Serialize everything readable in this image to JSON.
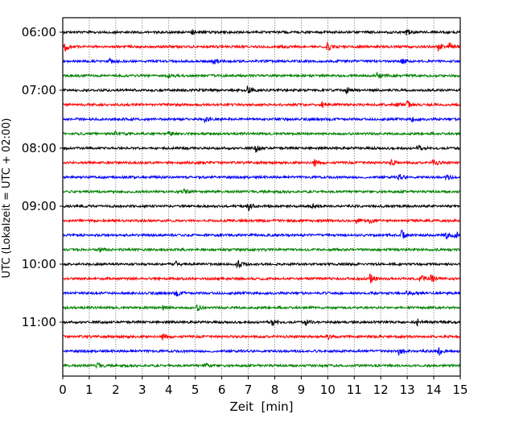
{
  "chart_data": {
    "type": "line",
    "title": "",
    "xlabel": "Zeit  [min]",
    "ylabel": "UTC (Lokalzeit = UTC + 02:00)",
    "xlim": [
      0,
      15
    ],
    "x_ticks": [
      "0",
      "1",
      "2",
      "3",
      "4",
      "5",
      "6",
      "7",
      "8",
      "9",
      "10",
      "11",
      "12",
      "13",
      "14",
      "15"
    ],
    "y_tick_labels": [
      "06:00",
      "07:00",
      "08:00",
      "09:00",
      "10:00",
      "11:00"
    ],
    "grid": "vertical dotted at each minute",
    "trace_interval_min": 15,
    "colors": [
      "#000000",
      "#ff0000",
      "#0000ff",
      "#008000"
    ],
    "traces": [
      {
        "start": "06:00",
        "events": [
          [
            4.9,
            1.2
          ],
          [
            13.0,
            1.0
          ]
        ]
      },
      {
        "start": "06:15",
        "events": [
          [
            0.1,
            2.0
          ],
          [
            8.2,
            1.0
          ],
          [
            10.0,
            2.2
          ],
          [
            14.2,
            1.8
          ],
          [
            14.6,
            1.6
          ]
        ]
      },
      {
        "start": "06:30",
        "events": [
          [
            1.8,
            0.8
          ],
          [
            5.7,
            1.0
          ],
          [
            12.8,
            1.2
          ]
        ]
      },
      {
        "start": "06:45",
        "events": [
          [
            4.0,
            1.0
          ],
          [
            11.9,
            1.0
          ]
        ]
      },
      {
        "start": "07:00",
        "events": [
          [
            7.0,
            1.6
          ],
          [
            10.7,
            1.2
          ]
        ]
      },
      {
        "start": "07:15",
        "events": [
          [
            9.8,
            1.2
          ],
          [
            13.0,
            1.6
          ],
          [
            12.6,
            1.0
          ]
        ]
      },
      {
        "start": "07:30",
        "events": [
          [
            5.4,
            1.0
          ],
          [
            13.2,
            1.0
          ]
        ]
      },
      {
        "start": "07:45",
        "events": [
          [
            2.0,
            1.0
          ],
          [
            4.0,
            1.0
          ]
        ]
      },
      {
        "start": "08:00",
        "events": [
          [
            7.3,
            1.6
          ],
          [
            13.4,
            1.2
          ]
        ]
      },
      {
        "start": "08:15",
        "events": [
          [
            9.5,
            1.6
          ],
          [
            12.4,
            1.2
          ],
          [
            14.0,
            1.2
          ]
        ]
      },
      {
        "start": "08:30",
        "events": [
          [
            12.7,
            1.4
          ],
          [
            14.5,
            1.0
          ]
        ]
      },
      {
        "start": "08:45",
        "events": [
          [
            4.6,
            1.0
          ]
        ]
      },
      {
        "start": "09:00",
        "events": [
          [
            7.0,
            2.0
          ],
          [
            9.4,
            1.0
          ]
        ]
      },
      {
        "start": "09:15",
        "events": [
          [
            11.1,
            1.4
          ],
          [
            11.6,
            1.0
          ]
        ]
      },
      {
        "start": "09:30",
        "events": [
          [
            12.8,
            1.8
          ],
          [
            14.8,
            1.8
          ],
          [
            14.5,
            1.2
          ]
        ]
      },
      {
        "start": "09:45",
        "events": [
          [
            1.4,
            1.0
          ]
        ]
      },
      {
        "start": "10:00",
        "events": [
          [
            6.6,
            1.6
          ],
          [
            4.3,
            1.0
          ]
        ]
      },
      {
        "start": "10:15",
        "events": [
          [
            11.6,
            2.0
          ],
          [
            13.5,
            1.8
          ],
          [
            13.9,
            2.0
          ]
        ]
      },
      {
        "start": "10:30",
        "events": [
          [
            4.3,
            1.0
          ],
          [
            13.0,
            1.0
          ]
        ]
      },
      {
        "start": "10:45",
        "events": [
          [
            3.8,
            1.0
          ],
          [
            5.1,
            1.0
          ]
        ]
      },
      {
        "start": "11:00",
        "events": [
          [
            7.9,
            1.4
          ],
          [
            9.2,
            1.2
          ],
          [
            13.4,
            1.4
          ]
        ]
      },
      {
        "start": "11:15",
        "events": [
          [
            3.8,
            1.2
          ],
          [
            10.0,
            1.0
          ]
        ]
      },
      {
        "start": "11:30",
        "events": [
          [
            12.7,
            1.6
          ],
          [
            14.2,
            1.8
          ]
        ]
      },
      {
        "start": "11:45",
        "events": [
          [
            1.3,
            1.0
          ],
          [
            5.4,
            1.0
          ]
        ]
      }
    ]
  }
}
